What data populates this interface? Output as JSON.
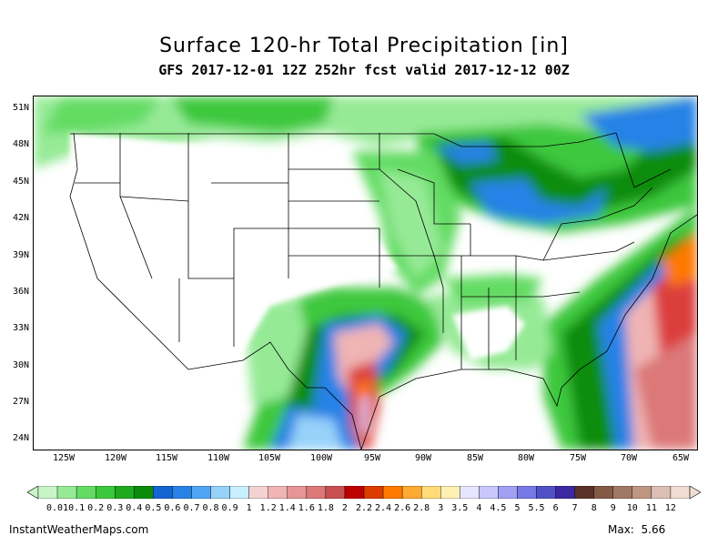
{
  "title": "Surface 120-hr Total Precipitation [in]",
  "subtitle": "GFS 2017-12-01 12Z 252hr fcst valid 2017-12-12 00Z",
  "lat_labels": [
    "51N",
    "48N",
    "45N",
    "42N",
    "39N",
    "36N",
    "33N",
    "30N",
    "27N",
    "24N"
  ],
  "lon_labels": [
    "125W",
    "120W",
    "115W",
    "110W",
    "105W",
    "100W",
    "95W",
    "90W",
    "85W",
    "80W",
    "75W",
    "70W",
    "65W"
  ],
  "colorbar": {
    "labels": [
      "0.01",
      "0.1",
      "0.2",
      "0.3",
      "0.4",
      "0.5",
      "0.6",
      "0.7",
      "0.8",
      "0.9",
      "1",
      "1.2",
      "1.4",
      "1.6",
      "1.8",
      "2",
      "2.2",
      "2.4",
      "2.6",
      "2.8",
      "3",
      "3.5",
      "4",
      "4.5",
      "5",
      "5.5",
      "6",
      "7",
      "8",
      "9",
      "10",
      "11",
      "12"
    ],
    "colors": [
      "#c8f5c8",
      "#96ea96",
      "#64dc64",
      "#3cc83c",
      "#1eaa1e",
      "#0a8c0a",
      "#1464d2",
      "#2882e6",
      "#50a5f5",
      "#96d2fa",
      "#c8f0ff",
      "#f5d2d2",
      "#f0b4b4",
      "#e69696",
      "#dc7878",
      "#c85050",
      "#be0000",
      "#dc3c00",
      "#ff7800",
      "#ffaa32",
      "#ffdc78",
      "#fff0b4",
      "#e6e6ff",
      "#c8c8ff",
      "#a0a0f5",
      "#7878e6",
      "#5050c8",
      "#3c28a0",
      "#5a3228",
      "#825a46",
      "#a07864",
      "#be9682",
      "#dcbeb4",
      "#f0dcd2"
    ]
  },
  "footer": {
    "site": "InstantWeatherMaps.com",
    "max_label": "Max:",
    "max_value": "5.66"
  },
  "colors": {
    "light_green": "#96ea96",
    "green": "#3cc83c",
    "dark_green": "#0a8c0a",
    "blue": "#2882e6",
    "light_blue": "#96d2fa",
    "pink": "#f0b4b4",
    "red": "#dc3c3c",
    "orange": "#ff7800",
    "lavender": "#c8c8ff"
  }
}
